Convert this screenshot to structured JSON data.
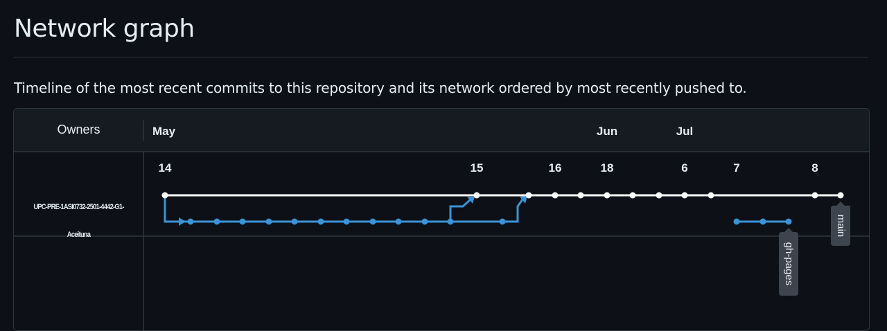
{
  "page": {
    "title": "Network graph",
    "description": "Timeline of the most recent commits to this repository and its network ordered by most recently pushed to."
  },
  "graph": {
    "owners_label": "Owners",
    "owner": "UPC-PRE-1ASI0732-2501-4442-G1-Aceituna",
    "months": [
      "May",
      "Jun",
      "Jul"
    ],
    "days": [
      "14",
      "15",
      "16",
      "18",
      "6",
      "7",
      "8"
    ],
    "branches": [
      {
        "name": "main",
        "color": "#ffffff"
      },
      {
        "name": "gh-pages",
        "color": "#3b93d6"
      }
    ]
  },
  "colors": {
    "background": "#0d1117",
    "header": "#161b22",
    "border": "#30363d",
    "main_line": "#ffffff",
    "branch_line": "#3b93d6",
    "label_bg": "#3d444d"
  }
}
